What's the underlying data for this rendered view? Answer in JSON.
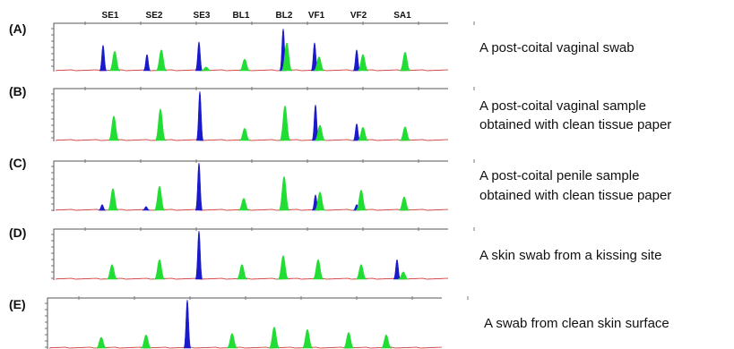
{
  "chart_data": {
    "type": "area",
    "markers": [
      "SE1",
      "SE2",
      "SE3",
      "BL1",
      "BL2",
      "VF1",
      "VF2",
      "SA1"
    ],
    "colors": {
      "blue": "#1a1acc",
      "green": "#22dd33",
      "baseline": "#cc2222"
    },
    "panels": [
      {
        "label": "(A)",
        "caption": [
          "A post-coital vaginal swab"
        ],
        "peaks": [
          {
            "x": 115,
            "h": 0.55,
            "c": "blue"
          },
          {
            "x": 128,
            "h": 0.42,
            "c": "green"
          },
          {
            "x": 164,
            "h": 0.35,
            "c": "blue"
          },
          {
            "x": 180,
            "h": 0.45,
            "c": "green"
          },
          {
            "x": 222,
            "h": 0.62,
            "c": "blue"
          },
          {
            "x": 230,
            "h": 0.08,
            "c": "green"
          },
          {
            "x": 273,
            "h": 0.25,
            "c": "green"
          },
          {
            "x": 316,
            "h": 0.9,
            "c": "blue"
          },
          {
            "x": 320,
            "h": 0.6,
            "c": "green"
          },
          {
            "x": 351,
            "h": 0.6,
            "c": "blue"
          },
          {
            "x": 356,
            "h": 0.3,
            "c": "green"
          },
          {
            "x": 398,
            "h": 0.45,
            "c": "blue"
          },
          {
            "x": 405,
            "h": 0.35,
            "c": "green"
          },
          {
            "x": 452,
            "h": 0.4,
            "c": "green"
          }
        ]
      },
      {
        "label": "(B)",
        "caption": [
          "A post-coital vaginal sample",
          "obtained with clean tissue paper"
        ],
        "peaks": [
          {
            "x": 127,
            "h": 0.48,
            "c": "green"
          },
          {
            "x": 179,
            "h": 0.62,
            "c": "green"
          },
          {
            "x": 223,
            "h": 0.96,
            "c": "blue"
          },
          {
            "x": 273,
            "h": 0.24,
            "c": "green"
          },
          {
            "x": 318,
            "h": 0.68,
            "c": "green"
          },
          {
            "x": 352,
            "h": 0.7,
            "c": "blue"
          },
          {
            "x": 357,
            "h": 0.3,
            "c": "green"
          },
          {
            "x": 398,
            "h": 0.33,
            "c": "blue"
          },
          {
            "x": 405,
            "h": 0.26,
            "c": "green"
          },
          {
            "x": 452,
            "h": 0.27,
            "c": "green"
          }
        ]
      },
      {
        "label": "(C)",
        "caption": [
          "A post-coital penile sample",
          "obtained with clean tissue paper"
        ],
        "peaks": [
          {
            "x": 114,
            "h": 0.12,
            "c": "blue"
          },
          {
            "x": 126,
            "h": 0.45,
            "c": "green"
          },
          {
            "x": 163,
            "h": 0.08,
            "c": "blue"
          },
          {
            "x": 178,
            "h": 0.5,
            "c": "green"
          },
          {
            "x": 222,
            "h": 0.98,
            "c": "blue"
          },
          {
            "x": 272,
            "h": 0.25,
            "c": "green"
          },
          {
            "x": 317,
            "h": 0.7,
            "c": "green"
          },
          {
            "x": 352,
            "h": 0.32,
            "c": "blue"
          },
          {
            "x": 357,
            "h": 0.38,
            "c": "green"
          },
          {
            "x": 398,
            "h": 0.12,
            "c": "blue"
          },
          {
            "x": 403,
            "h": 0.42,
            "c": "green"
          },
          {
            "x": 451,
            "h": 0.28,
            "c": "green"
          }
        ]
      },
      {
        "label": "(D)",
        "caption": [
          "A skin swab from a kissing site"
        ],
        "peaks": [
          {
            "x": 125,
            "h": 0.3,
            "c": "green"
          },
          {
            "x": 178,
            "h": 0.4,
            "c": "green"
          },
          {
            "x": 222,
            "h": 0.98,
            "c": "blue"
          },
          {
            "x": 270,
            "h": 0.3,
            "c": "green"
          },
          {
            "x": 316,
            "h": 0.48,
            "c": "green"
          },
          {
            "x": 355,
            "h": 0.4,
            "c": "green"
          },
          {
            "x": 403,
            "h": 0.3,
            "c": "green"
          },
          {
            "x": 443,
            "h": 0.4,
            "c": "blue"
          },
          {
            "x": 450,
            "h": 0.15,
            "c": "green"
          }
        ]
      },
      {
        "label": "(E)",
        "caption": [
          "A swab from clean skin surface"
        ],
        "peaks": [
          {
            "x": 120,
            "h": 0.22,
            "c": "green"
          },
          {
            "x": 170,
            "h": 0.27,
            "c": "green"
          },
          {
            "x": 216,
            "h": 0.98,
            "c": "blue"
          },
          {
            "x": 266,
            "h": 0.3,
            "c": "green"
          },
          {
            "x": 313,
            "h": 0.43,
            "c": "green"
          },
          {
            "x": 350,
            "h": 0.38,
            "c": "green"
          },
          {
            "x": 396,
            "h": 0.32,
            "c": "green"
          },
          {
            "x": 438,
            "h": 0.27,
            "c": "green"
          }
        ]
      }
    ]
  }
}
